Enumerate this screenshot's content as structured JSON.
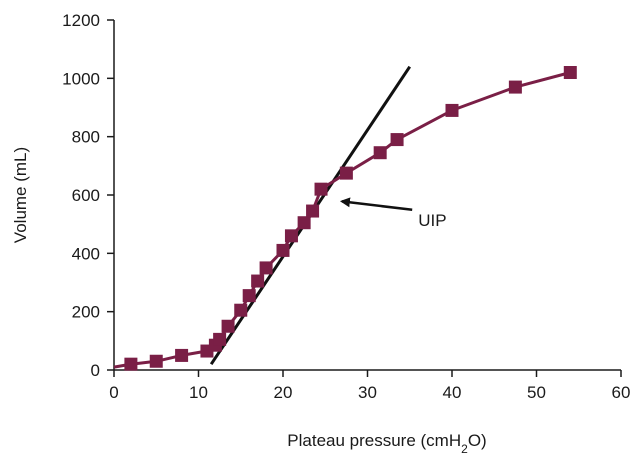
{
  "chart_data": {
    "type": "line",
    "title": "",
    "xlabel": "Plateau pressure (cmH",
    "xlabel_sub": "2",
    "xlabel_end": "O)",
    "ylabel": "Volume (mL)",
    "xlim": [
      0,
      60
    ],
    "ylim": [
      0,
      1200
    ],
    "xticks": [
      0,
      10,
      20,
      30,
      40,
      50,
      60
    ],
    "yticks": [
      0,
      200,
      400,
      600,
      800,
      1000,
      1200
    ],
    "grid": false,
    "legend": "none",
    "series": [
      {
        "color": "#7a1f46",
        "marker": "square",
        "x": [
          0,
          2,
          5,
          8,
          11,
          12,
          12.5,
          13.5,
          15,
          16,
          17,
          18,
          20,
          21,
          22.5,
          23.5,
          24.5,
          27.5,
          31.5,
          33.5,
          40,
          47.5,
          54
        ],
        "y": [
          10,
          20,
          30,
          50,
          65,
          85,
          105,
          150,
          205,
          255,
          305,
          350,
          410,
          460,
          505,
          545,
          620,
          675,
          745,
          790,
          890,
          970,
          1020
        ]
      }
    ],
    "tangent_line": {
      "x": [
        11.5,
        35
      ],
      "y": [
        20,
        1040
      ],
      "color": "#111111"
    },
    "annotations": [
      {
        "text": "UIP",
        "arrow_to": [
          26.5,
          585
        ],
        "text_at": [
          36,
          515
        ]
      }
    ]
  }
}
